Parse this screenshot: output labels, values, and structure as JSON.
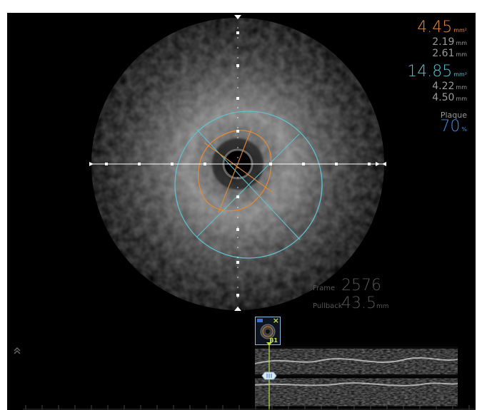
{
  "lumen": {
    "area_value": "4.45",
    "area_unit": "mm²",
    "min_diameter_value": "2.19",
    "min_diameter_unit": "mm",
    "max_diameter_value": "2.61",
    "max_diameter_unit": "mm",
    "color": "#e08a3a"
  },
  "vessel": {
    "area_value": "14.85",
    "area_unit": "mm²",
    "min_diameter_value": "4.22",
    "min_diameter_unit": "mm",
    "max_diameter_value": "4.50",
    "max_diameter_unit": "mm",
    "color": "#5fc1cf"
  },
  "plaque": {
    "label": "Plaque",
    "value": "70",
    "unit": "%",
    "color": "#3b8fe6"
  },
  "frame": {
    "label": "Frame",
    "value": "2576"
  },
  "pullback": {
    "label": "Pullback",
    "value": "43.5",
    "unit": "mm"
  },
  "bookmark": {
    "label": "B1",
    "icon": "bookmark-thumbnail-icon",
    "close_icon": "close-icon"
  },
  "icons": {
    "expand": "double-chevron-up-icon",
    "slider": "slider-handle-icon"
  },
  "colors": {
    "background": "#000000",
    "crosshair": "#ffffff",
    "marker": "#b6e04a"
  }
}
